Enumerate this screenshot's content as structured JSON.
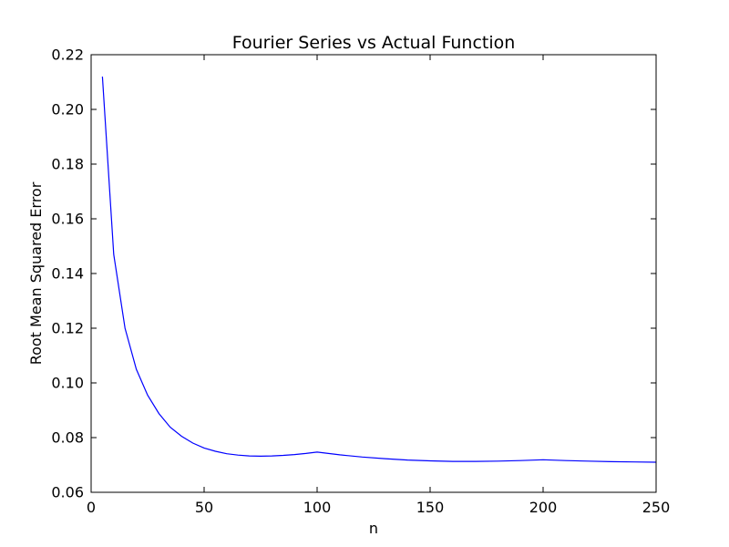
{
  "chart_data": {
    "type": "line",
    "title": "Fourier Series vs Actual Function",
    "xlabel": "n",
    "ylabel": "Root Mean Squared Error",
    "xlim": [
      0,
      250
    ],
    "ylim": [
      0.06,
      0.22
    ],
    "grid": false,
    "legend": "none",
    "xticks": [
      "0",
      "50",
      "100",
      "150",
      "200",
      "250"
    ],
    "yticks": [
      "0.06",
      "0.08",
      "0.10",
      "0.12",
      "0.14",
      "0.16",
      "0.18",
      "0.20",
      "0.22"
    ],
    "series": [
      {
        "color": "#0000ff",
        "x": [
          5,
          10,
          15,
          20,
          25,
          30,
          35,
          40,
          45,
          50,
          55,
          60,
          65,
          70,
          75,
          80,
          85,
          90,
          95,
          100,
          110,
          120,
          130,
          140,
          150,
          160,
          170,
          180,
          190,
          200,
          210,
          220,
          230,
          240,
          250
        ],
        "y": [
          0.212,
          0.147,
          0.12,
          0.105,
          0.0955,
          0.0888,
          0.0838,
          0.0805,
          0.078,
          0.0762,
          0.075,
          0.0741,
          0.0736,
          0.0733,
          0.0732,
          0.0733,
          0.0735,
          0.0738,
          0.0742,
          0.0747,
          0.0737,
          0.0729,
          0.0723,
          0.0718,
          0.0715,
          0.0713,
          0.0713,
          0.0714,
          0.0716,
          0.0719,
          0.0716,
          0.0714,
          0.0712,
          0.0711,
          0.071
        ]
      }
    ]
  }
}
